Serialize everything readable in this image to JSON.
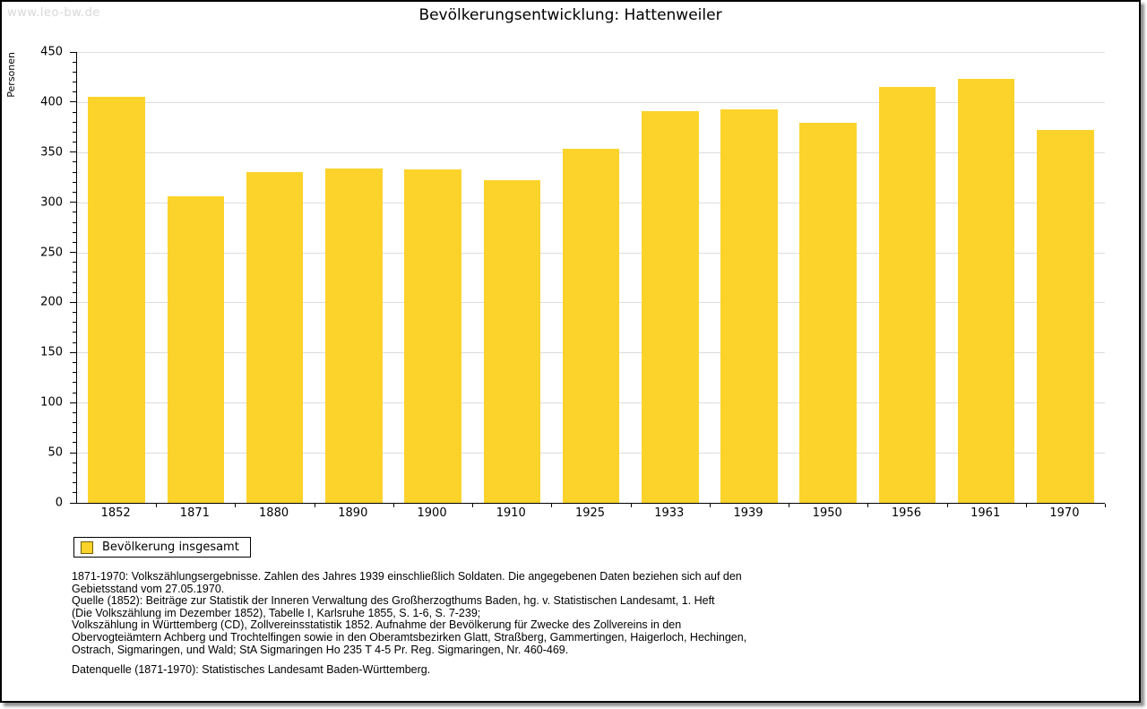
{
  "watermark": "www.leo-bw.de",
  "header": {
    "title": "Bevölkerungsentwicklung: Hattenweiler"
  },
  "chart_data": {
    "type": "bar",
    "title": "Bevölkerungsentwicklung: Hattenweiler",
    "xlabel": "",
    "ylabel": "Personen",
    "ylim": [
      0,
      450
    ],
    "ytick_step": 50,
    "minor_tick_step": 10,
    "grid": true,
    "legend_position": "bottom-left",
    "categories": [
      "1852",
      "1871",
      "1880",
      "1890",
      "1900",
      "1910",
      "1925",
      "1933",
      "1939",
      "1950",
      "1956",
      "1961",
      "1970"
    ],
    "series": [
      {
        "name": "Bevölkerung insgesamt",
        "values": [
          405,
          306,
          330,
          334,
          333,
          322,
          353,
          391,
          393,
          379,
          415,
          423,
          372
        ]
      }
    ],
    "values": [
      405,
      306,
      330,
      334,
      333,
      322,
      353,
      391,
      393,
      379,
      415,
      423,
      372
    ],
    "bar_color": "#FCD32B"
  },
  "legend": {
    "label": "Bevölkerung insgesamt"
  },
  "footnotes": {
    "lines": [
      "1871-1970: Volkszählungsergebnisse. Zahlen des Jahres 1939 einschließlich Soldaten. Die angegebenen Daten beziehen sich auf den",
      "Gebietsstand vom 27.05.1970.",
      "Quelle (1852): Beiträge zur Statistik der Inneren Verwaltung des Großherzogthums Baden, hg. v. Statistischen Landesamt, 1. Heft",
      "(Die Volkszählung im Dezember 1852), Tabelle I, Karlsruhe 1855, S. 1-6, S. 7-239;",
      "Volkszählung in Württemberg (CD), Zollvereinsstatistik 1852. Aufnahme der Bevölkerung für Zwecke des Zollvereins in den",
      "Obervogteiämtern Achberg und Trochtelfingen sowie in den Oberamtsbezirken Glatt, Straßberg, Gammertingen, Haigerloch, Hechingen,",
      "Ostrach, Sigmaringen, und Wald; StA Sigmaringen Ho 235 T 4-5 Pr. Reg. Sigmaringen, Nr. 460-469."
    ],
    "datasource": "Datenquelle (1871-1970): Statistisches Landesamt Baden-Württemberg."
  },
  "colors": {
    "bar": "#FCD32B",
    "grid": "#DDDDDD",
    "axis": "#000000",
    "watermark": "#D8D8D8",
    "swatch_border": "#706000"
  }
}
